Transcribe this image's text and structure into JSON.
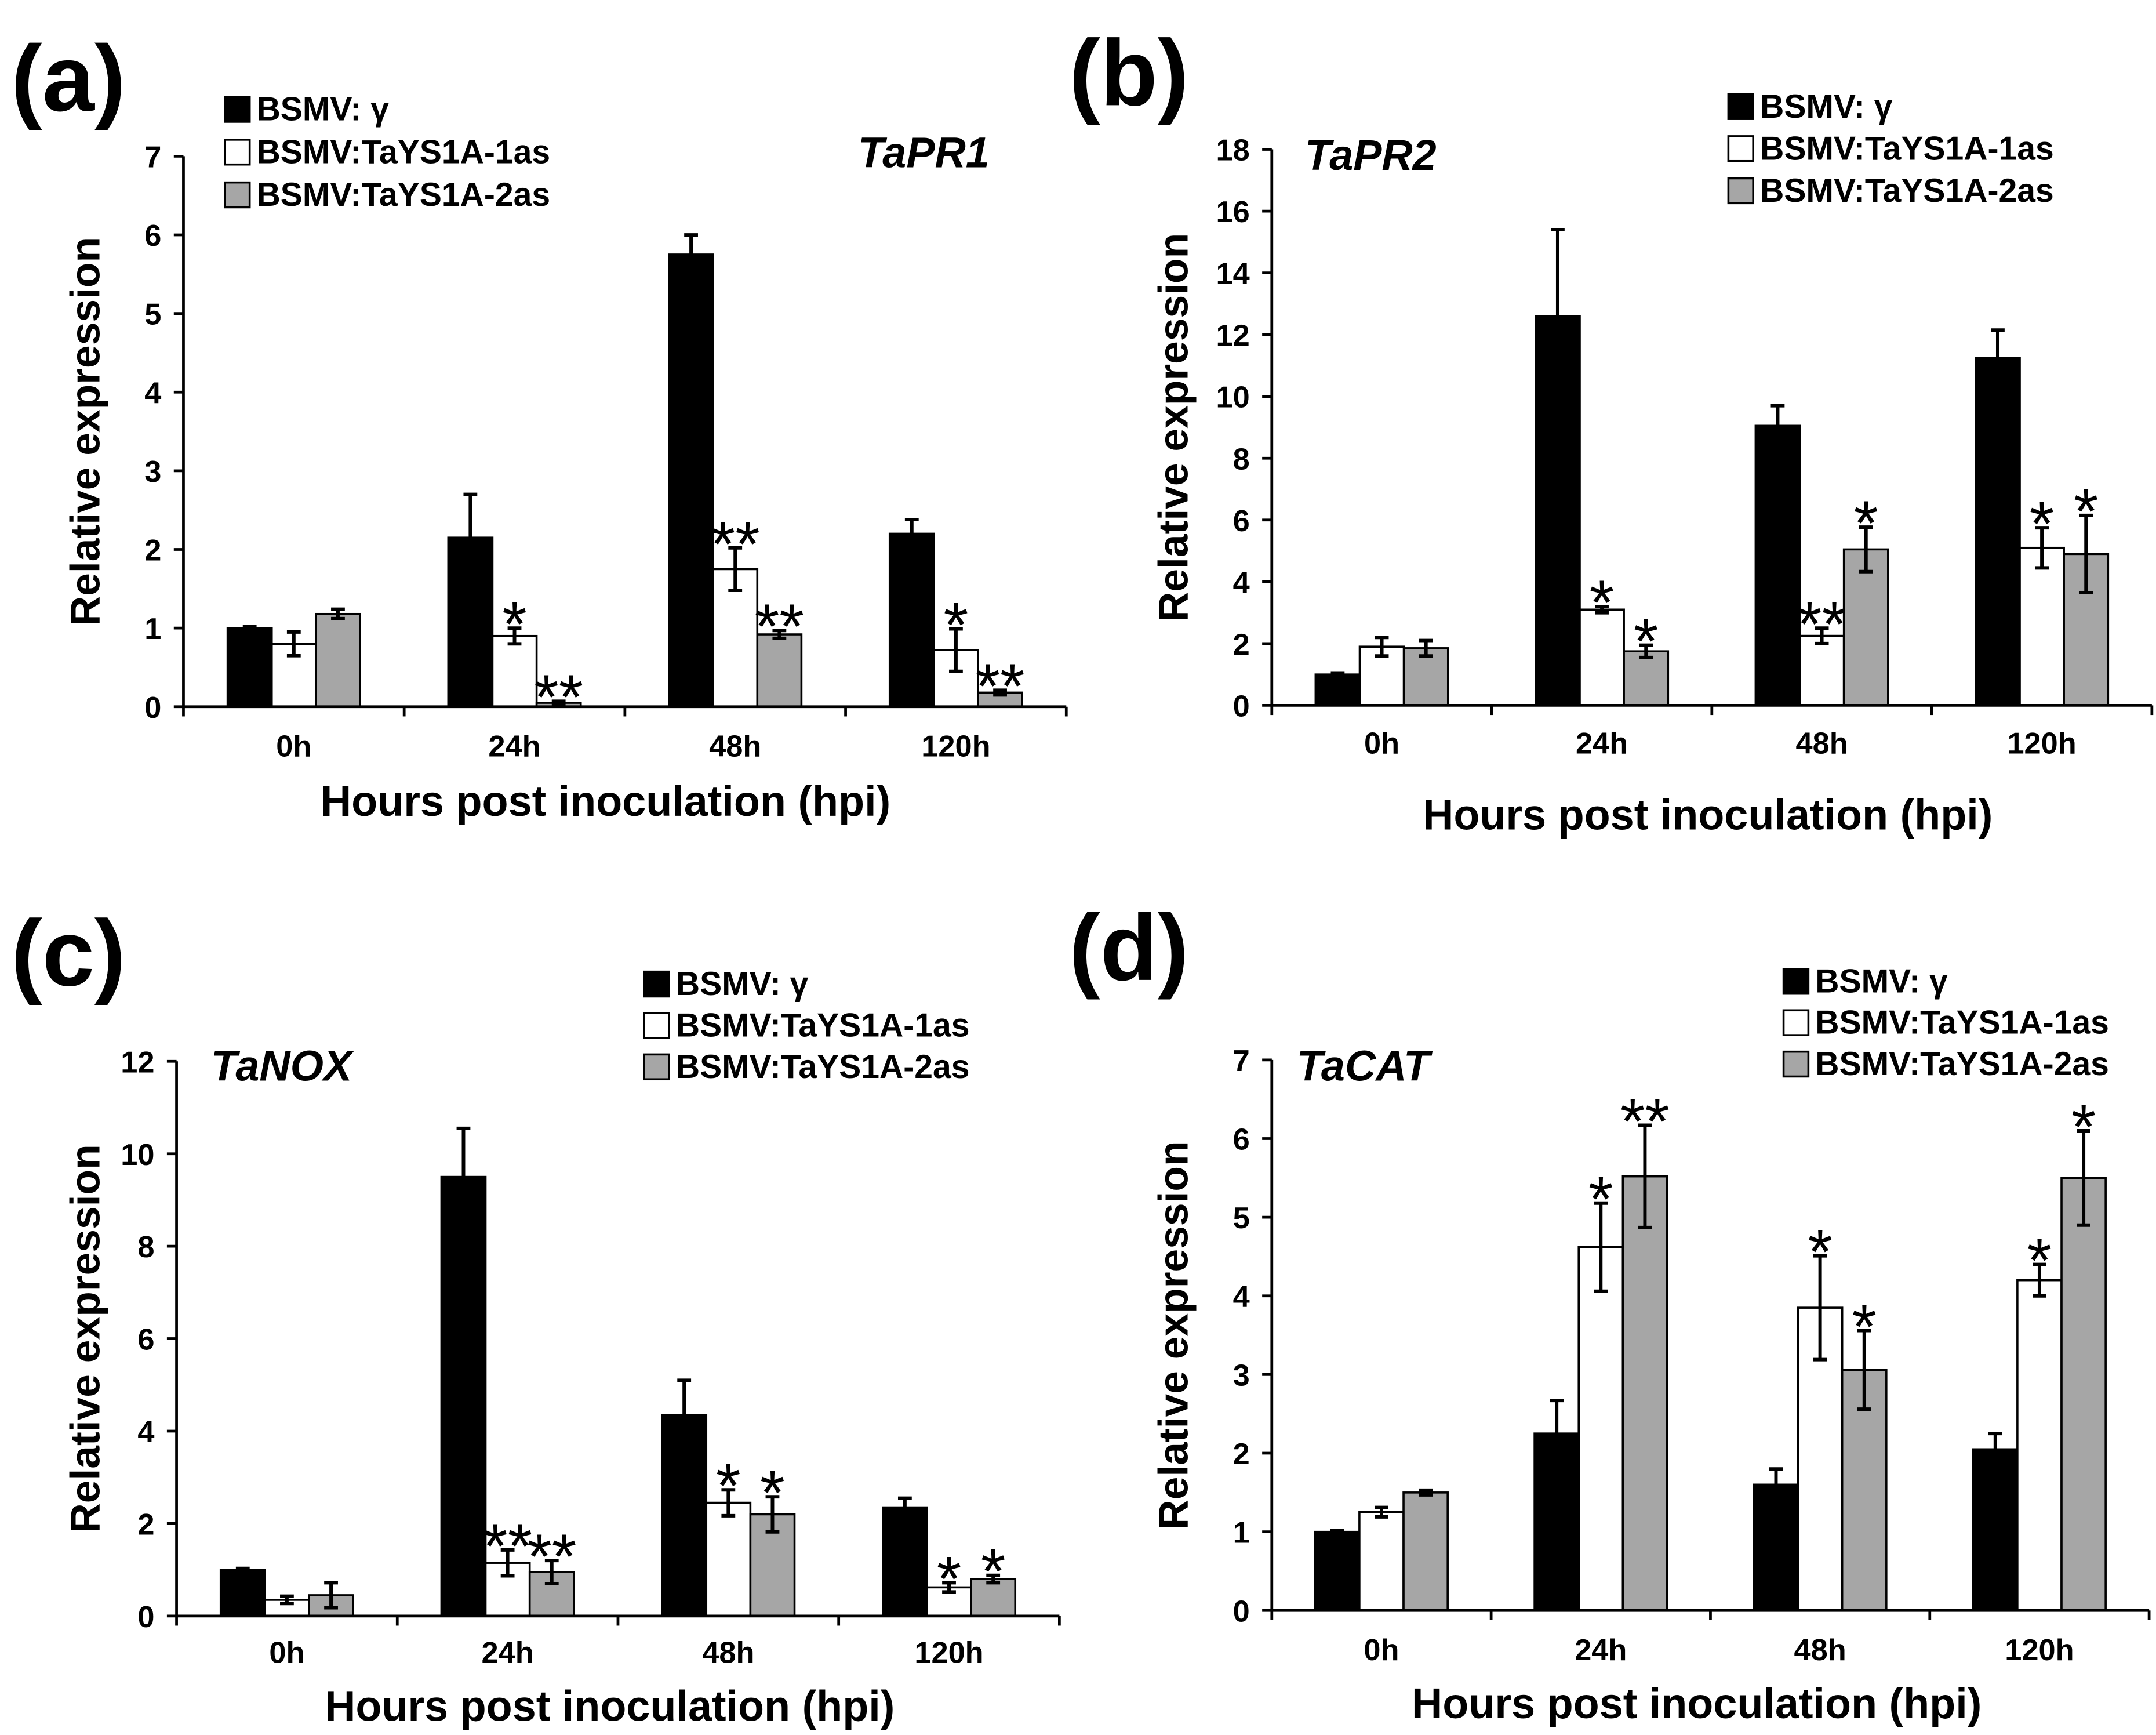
{
  "chart_data": [
    {
      "panel_label": "(a)",
      "type": "bar",
      "title": "TaPR1",
      "xlabel": "Hours post inoculation (hpi)",
      "ylabel": "Relative expression",
      "categories": [
        "0h",
        "24h",
        "48h",
        "120h"
      ],
      "ylim": [
        0,
        7
      ],
      "yticks": [
        0,
        1,
        2,
        3,
        4,
        5,
        6,
        7
      ],
      "series": [
        {
          "name": "BSMV: γ",
          "color": "#000000",
          "values": [
            1.0,
            2.15,
            5.75,
            2.2
          ],
          "errors": [
            0.02,
            0.55,
            0.25,
            0.18
          ],
          "significance": [
            null,
            null,
            null,
            null
          ]
        },
        {
          "name": "BSMV:TaYS1A-1as",
          "color": "#ffffff",
          "values": [
            0.8,
            0.9,
            1.75,
            0.72
          ],
          "errors": [
            0.15,
            0.1,
            0.27,
            0.27
          ],
          "significance": [
            null,
            "*",
            "**",
            "*"
          ]
        },
        {
          "name": "BSMV:TaYS1A-2as",
          "color": "#a6a6a6",
          "values": [
            1.18,
            0.05,
            0.92,
            0.18
          ],
          "errors": [
            0.06,
            0.02,
            0.05,
            0.03
          ],
          "significance": [
            null,
            "**",
            "**",
            "**"
          ]
        }
      ]
    },
    {
      "panel_label": "(b)",
      "type": "bar",
      "title": "TaPR2",
      "xlabel": "Hours post inoculation (hpi)",
      "ylabel": "Relative expression",
      "categories": [
        "0h",
        "24h",
        "48h",
        "120h"
      ],
      "ylim": [
        0,
        18
      ],
      "yticks": [
        0,
        2,
        4,
        6,
        8,
        10,
        12,
        14,
        16,
        18
      ],
      "series": [
        {
          "name": "BSMV: γ",
          "color": "#000000",
          "values": [
            1.0,
            12.6,
            9.05,
            11.25
          ],
          "errors": [
            0.05,
            2.8,
            0.65,
            0.9
          ],
          "significance": [
            null,
            null,
            null,
            null
          ]
        },
        {
          "name": "BSMV:TaYS1A-1as",
          "color": "#ffffff",
          "values": [
            1.9,
            3.1,
            2.25,
            5.1
          ],
          "errors": [
            0.3,
            0.1,
            0.25,
            0.65
          ],
          "significance": [
            null,
            "*",
            "**",
            "*"
          ]
        },
        {
          "name": "BSMV:TaYS1A-2as",
          "color": "#a6a6a6",
          "values": [
            1.85,
            1.75,
            5.05,
            4.9
          ],
          "errors": [
            0.25,
            0.2,
            0.72,
            1.25
          ],
          "significance": [
            null,
            "*",
            "*",
            "*"
          ]
        }
      ]
    },
    {
      "panel_label": "(c)",
      "type": "bar",
      "title": "TaNOX",
      "xlabel": "Hours post inoculation (hpi)",
      "ylabel": "Relative expression",
      "categories": [
        "0h",
        "24h",
        "48h",
        "120h"
      ],
      "ylim": [
        0,
        12
      ],
      "yticks": [
        0,
        2,
        4,
        6,
        8,
        10,
        12
      ],
      "series": [
        {
          "name": "BSMV: γ",
          "color": "#000000",
          "values": [
            1.0,
            9.5,
            4.35,
            2.35
          ],
          "errors": [
            0.03,
            1.05,
            0.75,
            0.2
          ],
          "significance": [
            null,
            null,
            null,
            null
          ]
        },
        {
          "name": "BSMV:TaYS1A-1as",
          "color": "#ffffff",
          "values": [
            0.35,
            1.15,
            2.45,
            0.62
          ],
          "errors": [
            0.08,
            0.28,
            0.28,
            0.1
          ],
          "significance": [
            null,
            "**",
            "*",
            "*"
          ]
        },
        {
          "name": "BSMV:TaYS1A-2as",
          "color": "#a6a6a6",
          "values": [
            0.45,
            0.95,
            2.2,
            0.8
          ],
          "errors": [
            0.27,
            0.25,
            0.38,
            0.08
          ],
          "significance": [
            null,
            "**",
            "*",
            "*"
          ]
        }
      ]
    },
    {
      "panel_label": "(d)",
      "type": "bar",
      "title": "TaCAT",
      "xlabel": "Hours post inoculation (hpi)",
      "ylabel": "Relative expression",
      "categories": [
        "0h",
        "24h",
        "48h",
        "120h"
      ],
      "ylim": [
        0,
        7
      ],
      "yticks": [
        0,
        1,
        2,
        3,
        4,
        5,
        6,
        7
      ],
      "series": [
        {
          "name": "BSMV: γ",
          "color": "#000000",
          "values": [
            1.0,
            2.25,
            1.6,
            2.05
          ],
          "errors": [
            0.02,
            0.42,
            0.2,
            0.2
          ],
          "significance": [
            null,
            null,
            null,
            null
          ]
        },
        {
          "name": "BSMV:TaYS1A-1as",
          "color": "#ffffff",
          "values": [
            1.25,
            4.62,
            3.85,
            4.2
          ],
          "errors": [
            0.06,
            0.56,
            0.66,
            0.2
          ],
          "significance": [
            null,
            "*",
            "*",
            "*"
          ]
        },
        {
          "name": "BSMV:TaYS1A-2as",
          "color": "#a6a6a6",
          "values": [
            1.5,
            5.52,
            3.06,
            5.5
          ],
          "errors": [
            0.03,
            0.65,
            0.5,
            0.6
          ],
          "significance": [
            null,
            "**",
            "*",
            "*"
          ]
        }
      ]
    }
  ]
}
